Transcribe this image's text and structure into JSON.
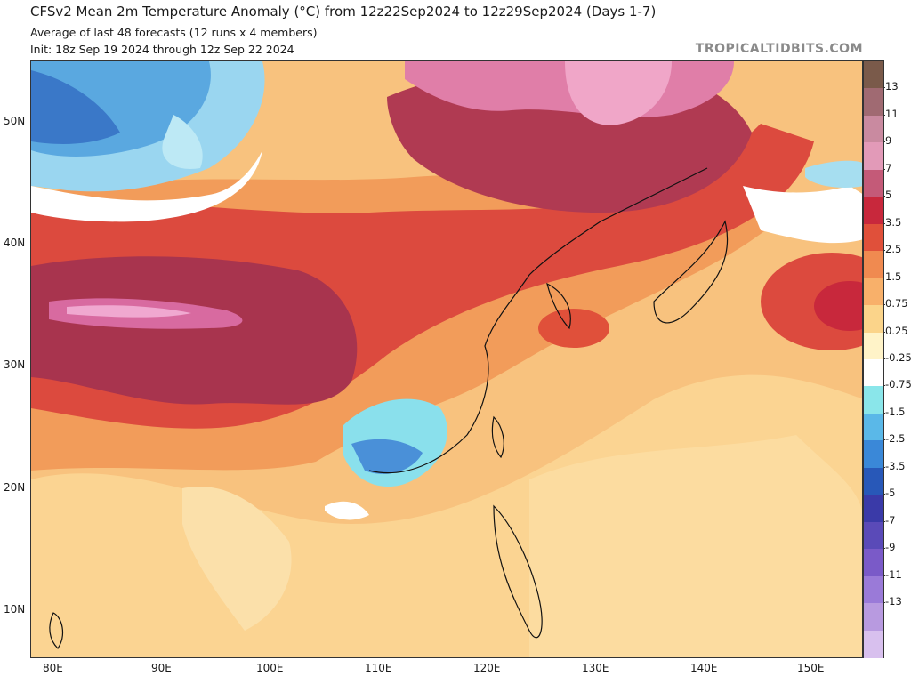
{
  "header": {
    "title": "CFSv2 Mean 2m Temperature Anomaly (°C) from 12z22Sep2024 to 12z29Sep2024 (Days 1-7)",
    "subtitle_1": "Average of last 48 forecasts (12 runs x 4 members)",
    "subtitle_2": "Init: 18z Sep 19 2024 through 12z Sep 22 2024"
  },
  "watermark": "TROPICALTIDBITS.COM",
  "map": {
    "region": "East Asia",
    "lat_labels": [
      "50N",
      "40N",
      "30N",
      "20N",
      "10N"
    ],
    "lon_labels": [
      "80E",
      "90E",
      "100E",
      "110E",
      "120E",
      "130E",
      "140E",
      "150E"
    ]
  },
  "colorbar": {
    "labels": [
      "13",
      "11",
      "9",
      "7",
      "5",
      "3.5",
      "2.5",
      "1.5",
      "0.75",
      "0.25",
      "-0.25",
      "-0.75",
      "-1.5",
      "-2.5",
      "-3.5",
      "-5",
      "-7",
      "-9",
      "-11",
      "-13"
    ],
    "colors": [
      "#7a5a4a",
      "#a06a72",
      "#c98aa0",
      "#e29ab8",
      "#c45a78",
      "#c8283c",
      "#e0503a",
      "#f08a50",
      "#f8b06a",
      "#fbd48a",
      "#fff3c8",
      "#ffffff",
      "#8ae6ea",
      "#5ab8e8",
      "#3a88d8",
      "#2858b8",
      "#3a3aa8",
      "#5a4ab8",
      "#7a5ac8",
      "#9a7ad8",
      "#b89ae0",
      "#d8c0ee"
    ]
  }
}
